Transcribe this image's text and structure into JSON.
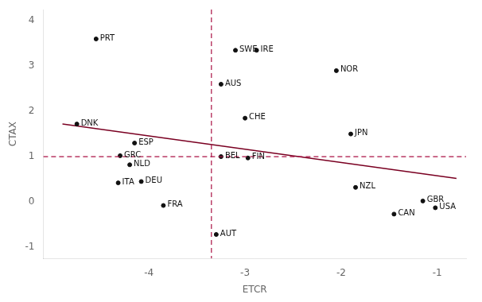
{
  "chart_data": {
    "type": "scatter",
    "x_label": "ETCR",
    "y_label": "CTAX",
    "labels": [
      "PRT",
      "SWE",
      "IRE",
      "NOR",
      "AUS",
      "CHE",
      "DNK",
      "JPN",
      "ESP",
      "GRC",
      "BEL",
      "FIN",
      "NLD",
      "DEU",
      "ITA",
      "NZL",
      "FRA",
      "GBR",
      "CAN",
      "AUT",
      "USA"
    ],
    "x": [
      -4.55,
      -3.1,
      -2.88,
      -2.05,
      -3.25,
      -3.0,
      -4.75,
      -1.9,
      -4.15,
      -4.3,
      -3.25,
      -2.97,
      -4.2,
      -4.08,
      -4.32,
      -1.85,
      -3.85,
      -1.15,
      -1.45,
      -3.3,
      -1.02
    ],
    "values": [
      3.6,
      3.35,
      3.35,
      2.9,
      2.6,
      1.85,
      1.72,
      1.5,
      1.3,
      1.02,
      1.0,
      0.97,
      0.82,
      0.45,
      0.42,
      0.32,
      -0.08,
      0.02,
      -0.27,
      -0.72,
      -0.13
    ],
    "color": "#111111",
    "xlim": [
      -5.1,
      -0.7
    ],
    "ylim": [
      -1.25,
      4.25
    ],
    "xticks": [
      -4,
      -3,
      -2,
      -1
    ],
    "yticks": [
      -1,
      0,
      1,
      2,
      3,
      4
    ],
    "grid": false,
    "trend_line": {
      "x": [
        -4.9,
        -0.8
      ],
      "values": [
        1.72,
        0.52
      ],
      "color": "#7a0022"
    },
    "reference_lines": [
      {
        "axis": "y",
        "value": 1.0,
        "color": "#aa1144",
        "line_style": "dashed"
      },
      {
        "axis": "x",
        "value": -3.35,
        "color": "#aa1144",
        "line_style": "dashed"
      }
    ]
  }
}
